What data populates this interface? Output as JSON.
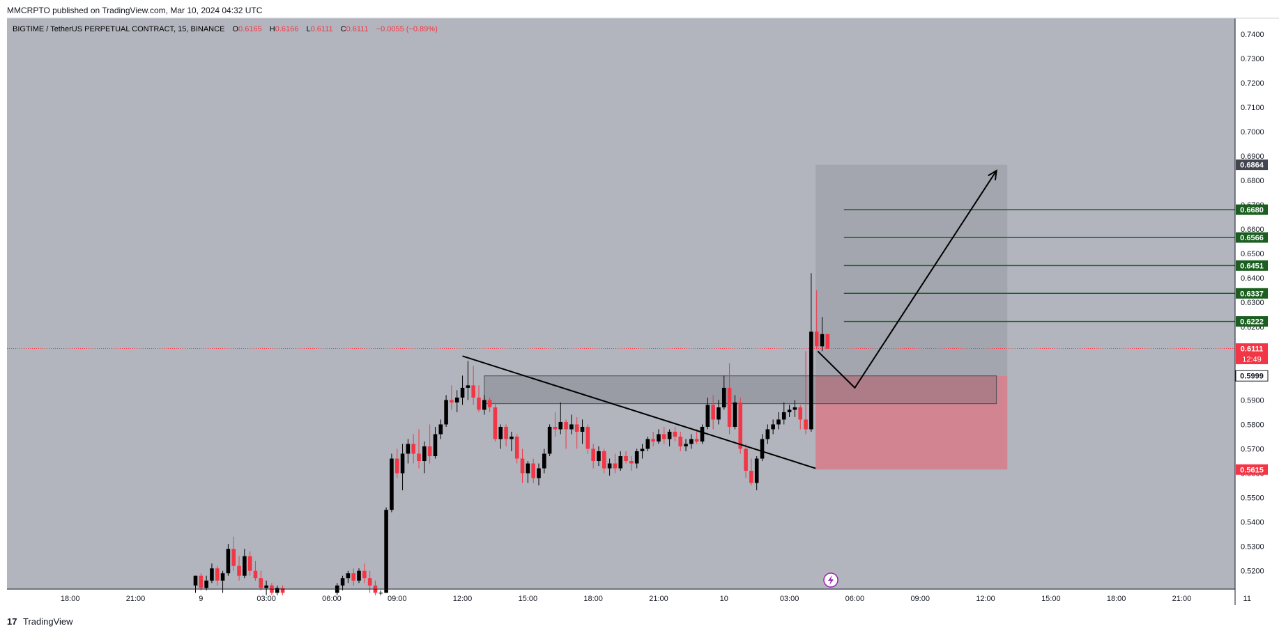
{
  "header": {
    "published": "MMCRPTO published on TradingView.com, Mar 10, 2024 04:32 UTC"
  },
  "footer": {
    "logo": "17",
    "brand": "TradingView"
  },
  "legend": {
    "symbol": "BIGTIME / TetherUS PERPETUAL CONTRACT, 15, BINANCE",
    "o_label": "O",
    "o_value": "0.6165",
    "h_label": "H",
    "h_value": "0.6166",
    "l_label": "L",
    "l_value": "0.6111",
    "c_label": "C",
    "c_value": "0.6111",
    "change": "−0.0055 (−0.89%)"
  },
  "colors": {
    "plot_bg": "#b2b5be",
    "up": "#000000",
    "down": "#f23645",
    "fib_line": "#1b5e20",
    "fib_label_bg": "#1b5e20",
    "target_label_bg": "#434651",
    "current_label_bg": "#f23645",
    "stop_zone": "#d4838d",
    "target_zone": "#a0a3ac"
  },
  "chart_data": {
    "type": "candlestick",
    "title": "BIGTIME / TetherUS PERPETUAL CONTRACT, 15, BINANCE",
    "y_ticks": [
      "0.7400",
      "0.7300",
      "0.7200",
      "0.7100",
      "0.7000",
      "0.6900",
      "0.6800",
      "0.6700",
      "0.6600",
      "0.6500",
      "0.6400",
      "0.6300",
      "0.6200",
      "0.6100",
      "0.6000",
      "0.5900",
      "0.5800",
      "0.5700",
      "0.5600",
      "0.5500",
      "0.5400",
      "0.5300",
      "0.5200"
    ],
    "y_range": [
      0.5125,
      0.7465
    ],
    "x_ticks": [
      {
        "label": "18:00",
        "t": -10
      },
      {
        "label": "21:00",
        "t": -7
      },
      {
        "label": "9",
        "t": -4
      },
      {
        "label": "03:00",
        "t": -1
      },
      {
        "label": "06:00",
        "t": 2
      },
      {
        "label": "09:00",
        "t": 5
      },
      {
        "label": "12:00",
        "t": 8
      },
      {
        "label": "15:00",
        "t": 11
      },
      {
        "label": "18:00",
        "t": 14
      },
      {
        "label": "21:00",
        "t": 17
      },
      {
        "label": "10",
        "t": 20
      },
      {
        "label": "03:00",
        "t": 23
      },
      {
        "label": "06:00",
        "t": 26
      },
      {
        "label": "09:00",
        "t": 29
      },
      {
        "label": "12:00",
        "t": 32
      },
      {
        "label": "15:00",
        "t": 35
      },
      {
        "label": "18:00",
        "t": 38
      },
      {
        "label": "21:00",
        "t": 41
      },
      {
        "label": "11",
        "t": 44
      }
    ],
    "x_unit": "hours from Mar 9 00:00 UTC",
    "candles": [
      [
        -4.25,
        0.514,
        0.518,
        0.511,
        0.518
      ],
      [
        -4.0,
        0.518,
        0.519,
        0.512,
        0.513
      ],
      [
        -3.75,
        0.513,
        0.518,
        0.512,
        0.516
      ],
      [
        -3.5,
        0.516,
        0.523,
        0.515,
        0.521
      ],
      [
        -3.25,
        0.521,
        0.522,
        0.514,
        0.516
      ],
      [
        -3.0,
        0.516,
        0.52,
        0.511,
        0.519
      ],
      [
        -2.75,
        0.519,
        0.531,
        0.518,
        0.529
      ],
      [
        -2.5,
        0.529,
        0.534,
        0.52,
        0.522
      ],
      [
        -2.25,
        0.522,
        0.526,
        0.516,
        0.518
      ],
      [
        -2.0,
        0.518,
        0.529,
        0.517,
        0.526
      ],
      [
        -1.75,
        0.526,
        0.528,
        0.518,
        0.52
      ],
      [
        -1.5,
        0.52,
        0.524,
        0.516,
        0.517
      ],
      [
        -1.25,
        0.517,
        0.52,
        0.512,
        0.513
      ],
      [
        -1.0,
        0.513,
        0.516,
        0.51,
        0.514
      ],
      [
        -0.75,
        0.514,
        0.515,
        0.51,
        0.511
      ],
      [
        -0.5,
        0.511,
        0.514,
        0.51,
        0.513
      ],
      [
        -0.25,
        0.513,
        0.514,
        0.51,
        0.511
      ],
      [
        2.25,
        0.511,
        0.515,
        0.51,
        0.514
      ],
      [
        2.5,
        0.514,
        0.518,
        0.512,
        0.517
      ],
      [
        2.75,
        0.517,
        0.52,
        0.515,
        0.519
      ],
      [
        3.0,
        0.519,
        0.521,
        0.514,
        0.516
      ],
      [
        3.25,
        0.516,
        0.521,
        0.515,
        0.52
      ],
      [
        3.5,
        0.52,
        0.523,
        0.515,
        0.517
      ],
      [
        3.75,
        0.517,
        0.52,
        0.511,
        0.514
      ],
      [
        4.0,
        0.514,
        0.516,
        0.51,
        0.511
      ],
      [
        4.25,
        0.511,
        0.512,
        0.51,
        0.511
      ],
      [
        4.5,
        0.511,
        0.546,
        0.511,
        0.545
      ],
      [
        4.75,
        0.545,
        0.568,
        0.544,
        0.566
      ],
      [
        5.0,
        0.566,
        0.57,
        0.558,
        0.56
      ],
      [
        5.25,
        0.56,
        0.572,
        0.553,
        0.568
      ],
      [
        5.5,
        0.568,
        0.574,
        0.564,
        0.572
      ],
      [
        5.75,
        0.572,
        0.576,
        0.564,
        0.568
      ],
      [
        6.0,
        0.568,
        0.578,
        0.562,
        0.565
      ],
      [
        6.25,
        0.565,
        0.573,
        0.56,
        0.571
      ],
      [
        6.5,
        0.571,
        0.58,
        0.564,
        0.567
      ],
      [
        6.75,
        0.567,
        0.579,
        0.566,
        0.576
      ],
      [
        7.0,
        0.576,
        0.582,
        0.574,
        0.58
      ],
      [
        7.25,
        0.58,
        0.592,
        0.579,
        0.59
      ],
      [
        7.5,
        0.59,
        0.596,
        0.586,
        0.589
      ],
      [
        7.75,
        0.589,
        0.594,
        0.585,
        0.591
      ],
      [
        8.0,
        0.591,
        0.6,
        0.588,
        0.595
      ],
      [
        8.25,
        0.595,
        0.606,
        0.59,
        0.596
      ],
      [
        8.5,
        0.596,
        0.604,
        0.588,
        0.591
      ],
      [
        8.75,
        0.591,
        0.596,
        0.585,
        0.586
      ],
      [
        9.0,
        0.586,
        0.592,
        0.584,
        0.59
      ],
      [
        9.25,
        0.59,
        0.591,
        0.585,
        0.587
      ],
      [
        9.5,
        0.587,
        0.589,
        0.573,
        0.574
      ],
      [
        9.75,
        0.574,
        0.58,
        0.57,
        0.579
      ],
      [
        10.0,
        0.579,
        0.58,
        0.571,
        0.574
      ],
      [
        10.25,
        0.574,
        0.577,
        0.569,
        0.575
      ],
      [
        10.5,
        0.575,
        0.576,
        0.564,
        0.566
      ],
      [
        10.75,
        0.566,
        0.57,
        0.556,
        0.56
      ],
      [
        11.0,
        0.56,
        0.565,
        0.556,
        0.564
      ],
      [
        11.25,
        0.564,
        0.566,
        0.556,
        0.558
      ],
      [
        11.5,
        0.558,
        0.564,
        0.555,
        0.562
      ],
      [
        11.75,
        0.562,
        0.57,
        0.56,
        0.568
      ],
      [
        12.0,
        0.568,
        0.58,
        0.567,
        0.579
      ],
      [
        12.25,
        0.579,
        0.585,
        0.575,
        0.578
      ],
      [
        12.5,
        0.578,
        0.589,
        0.576,
        0.581
      ],
      [
        12.75,
        0.581,
        0.582,
        0.57,
        0.578
      ],
      [
        13.0,
        0.578,
        0.584,
        0.576,
        0.58
      ],
      [
        13.25,
        0.58,
        0.583,
        0.57,
        0.577
      ],
      [
        13.5,
        0.577,
        0.582,
        0.572,
        0.579
      ],
      [
        13.75,
        0.579,
        0.58,
        0.568,
        0.57
      ],
      [
        14.0,
        0.57,
        0.572,
        0.562,
        0.565
      ],
      [
        14.25,
        0.565,
        0.571,
        0.563,
        0.569
      ],
      [
        14.5,
        0.569,
        0.57,
        0.56,
        0.562
      ],
      [
        14.75,
        0.562,
        0.566,
        0.559,
        0.564
      ],
      [
        15.0,
        0.564,
        0.568,
        0.56,
        0.562
      ],
      [
        15.25,
        0.562,
        0.569,
        0.561,
        0.567
      ],
      [
        15.5,
        0.567,
        0.569,
        0.564,
        0.565
      ],
      [
        15.75,
        0.565,
        0.567,
        0.561,
        0.564
      ],
      [
        16.0,
        0.564,
        0.57,
        0.562,
        0.569
      ],
      [
        16.25,
        0.569,
        0.572,
        0.566,
        0.57
      ],
      [
        16.5,
        0.57,
        0.575,
        0.569,
        0.574
      ],
      [
        16.75,
        0.574,
        0.577,
        0.571,
        0.573
      ],
      [
        17.0,
        0.573,
        0.578,
        0.572,
        0.576
      ],
      [
        17.25,
        0.576,
        0.579,
        0.572,
        0.574
      ],
      [
        17.5,
        0.574,
        0.578,
        0.571,
        0.577
      ],
      [
        17.75,
        0.577,
        0.579,
        0.573,
        0.575
      ],
      [
        18.0,
        0.575,
        0.577,
        0.569,
        0.571
      ],
      [
        18.25,
        0.571,
        0.574,
        0.569,
        0.572
      ],
      [
        18.5,
        0.572,
        0.576,
        0.57,
        0.574
      ],
      [
        18.75,
        0.574,
        0.578,
        0.572,
        0.573
      ],
      [
        19.0,
        0.573,
        0.58,
        0.572,
        0.579
      ],
      [
        19.25,
        0.579,
        0.591,
        0.578,
        0.588
      ],
      [
        19.5,
        0.588,
        0.592,
        0.578,
        0.582
      ],
      [
        19.75,
        0.582,
        0.59,
        0.58,
        0.587
      ],
      [
        20.0,
        0.587,
        0.6,
        0.586,
        0.595
      ],
      [
        20.25,
        0.595,
        0.605,
        0.576,
        0.579
      ],
      [
        20.5,
        0.579,
        0.592,
        0.578,
        0.589
      ],
      [
        20.75,
        0.589,
        0.591,
        0.568,
        0.57
      ],
      [
        21.0,
        0.57,
        0.572,
        0.558,
        0.561
      ],
      [
        21.25,
        0.561,
        0.566,
        0.555,
        0.556
      ],
      [
        21.5,
        0.556,
        0.567,
        0.553,
        0.566
      ],
      [
        21.75,
        0.566,
        0.576,
        0.565,
        0.574
      ],
      [
        22.0,
        0.574,
        0.58,
        0.572,
        0.578
      ],
      [
        22.25,
        0.578,
        0.582,
        0.576,
        0.58
      ],
      [
        22.5,
        0.58,
        0.585,
        0.578,
        0.582
      ],
      [
        22.75,
        0.582,
        0.589,
        0.58,
        0.585
      ],
      [
        23.0,
        0.585,
        0.588,
        0.583,
        0.586
      ],
      [
        23.25,
        0.586,
        0.59,
        0.583,
        0.587
      ],
      [
        23.5,
        0.587,
        0.588,
        0.578,
        0.582
      ],
      [
        23.75,
        0.582,
        0.61,
        0.576,
        0.578
      ],
      [
        24.0,
        0.578,
        0.642,
        0.577,
        0.618
      ],
      [
        24.25,
        0.618,
        0.635,
        0.611,
        0.612
      ],
      [
        24.5,
        0.612,
        0.624,
        0.61,
        0.617
      ],
      [
        24.75,
        0.617,
        0.617,
        0.611,
        0.611
      ]
    ],
    "candle_order": "t, open, high, low, close",
    "current_price": "0.6111",
    "countdown": "12:49",
    "target_price": "0.6864",
    "entry_price": "0.5999",
    "stop_price": "0.5615",
    "fib_levels": [
      "0.6680",
      "0.6566",
      "0.6451",
      "0.6337",
      "0.6222"
    ],
    "demand_zone": {
      "t_start": 9.0,
      "t_end": 32.5,
      "y_top": 0.5999,
      "y_bottom": 0.5885
    },
    "position": {
      "t_start": 24.2,
      "t_end": 33.0
    },
    "fib_span": {
      "t_start": 25.5,
      "t_end": 44.5
    },
    "trendline": [
      [
        8.0,
        0.608
      ],
      [
        24.2,
        0.562
      ]
    ],
    "path_arrow": [
      [
        24.3,
        0.61
      ],
      [
        26.0,
        0.595
      ],
      [
        32.5,
        0.684
      ]
    ]
  }
}
